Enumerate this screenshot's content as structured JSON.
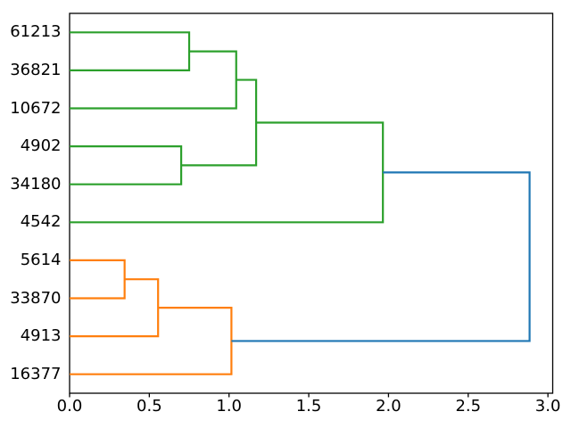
{
  "figure": {
    "kind": "matplotlib-dendrogram-plot",
    "background": "#ffffff"
  },
  "chart_data": {
    "type": "dendrogram",
    "orientation": "right",
    "title": "",
    "xlabel": "",
    "ylabel": "",
    "grid": false,
    "leaves_top_to_bottom": [
      "61213",
      "36821",
      "10672",
      "4902",
      "34180",
      "4542",
      "5614",
      "33870",
      "4913",
      "16377"
    ],
    "leaf_heights": [
      0,
      0,
      0,
      0,
      0,
      0,
      0,
      0,
      0,
      0
    ],
    "merges": [
      {
        "id": "m1",
        "a": "61213",
        "b": "36821",
        "height": 0.75,
        "color": "green"
      },
      {
        "id": "m2",
        "a": "m1",
        "b": "10672",
        "height": 1.045,
        "color": "green"
      },
      {
        "id": "m3",
        "a": "4902",
        "b": "34180",
        "height": 0.7,
        "color": "green"
      },
      {
        "id": "m4",
        "a": "m2",
        "b": "m3",
        "height": 1.17,
        "color": "green"
      },
      {
        "id": "m5",
        "a": "m4",
        "b": "4542",
        "height": 1.965,
        "color": "green"
      },
      {
        "id": "m6",
        "a": "5614",
        "b": "33870",
        "height": 0.345,
        "color": "orange"
      },
      {
        "id": "m7",
        "a": "m6",
        "b": "4913",
        "height": 0.555,
        "color": "orange"
      },
      {
        "id": "m8",
        "a": "m7",
        "b": "16377",
        "height": 1.015,
        "color": "orange"
      },
      {
        "id": "m9",
        "a": "m5",
        "b": "m8",
        "height": 2.885,
        "color": "blue"
      }
    ],
    "colors": {
      "green": "#2ca02c",
      "orange": "#ff7f0e",
      "blue": "#1f77b4",
      "axis": "#000000",
      "text": "#000000"
    },
    "x_axis": {
      "tick_labels": [
        "0.0",
        "0.5",
        "1.0",
        "1.5",
        "2.0",
        "2.5",
        "3.0"
      ],
      "tick_values": [
        0.0,
        0.5,
        1.0,
        1.5,
        2.0,
        2.5,
        3.0
      ],
      "lim": [
        0,
        3.03
      ]
    },
    "y_axis": {
      "lim": [
        0,
        100
      ],
      "leaf_positions": [
        95,
        85,
        75,
        65,
        55,
        45,
        35,
        25,
        15,
        5
      ]
    }
  }
}
